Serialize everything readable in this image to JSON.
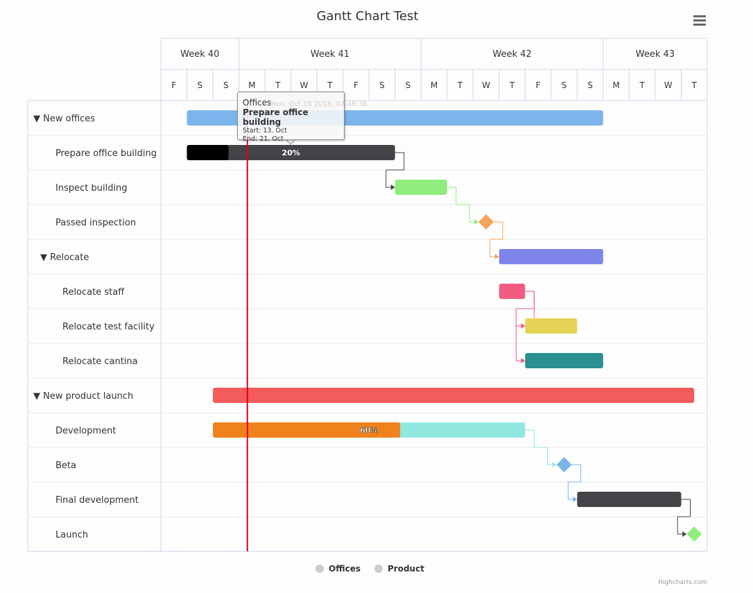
{
  "title": "Gantt Chart Test",
  "menu_icon": "hamburger-menu-icon",
  "chart_data": {
    "type": "gantt",
    "x_range": [
      "2018-10-12",
      "2018-11-02"
    ],
    "weeks": [
      {
        "label": "Week 40",
        "days": 3
      },
      {
        "label": "Week 41",
        "days": 7
      },
      {
        "label": "Week 42",
        "days": 7
      },
      {
        "label": "Week 43",
        "days": 4
      }
    ],
    "day_labels": [
      "F",
      "S",
      "S",
      "M",
      "T",
      "W",
      "T",
      "F",
      "S",
      "S",
      "M",
      "T",
      "W",
      "T",
      "F",
      "S",
      "S",
      "M",
      "T",
      "W",
      "T"
    ],
    "current_date": "2018-10-15T07:48:38",
    "current_date_label": "Mon, Oct 15 2018, 07:48:38",
    "current_date_color": "#e0001a",
    "tasks": [
      {
        "name": "New offices",
        "level": 0,
        "collapsible": true,
        "series": "Offices",
        "start": "2018-10-13",
        "end": "2018-10-29",
        "color": "#7cb5ec"
      },
      {
        "name": "Prepare office building",
        "level": 1,
        "series": "Offices",
        "start": "2018-10-13",
        "end": "2018-10-21",
        "color": "#434348",
        "completed": 0.2,
        "completed_label": "20%",
        "completed_color": "#000000"
      },
      {
        "name": "Inspect building",
        "level": 1,
        "series": "Offices",
        "start": "2018-10-21",
        "end": "2018-10-23",
        "color": "#90ed7d",
        "dependency": 1
      },
      {
        "name": "Passed inspection",
        "level": 1,
        "series": "Offices",
        "milestone": true,
        "start": "2018-10-24T12:00",
        "color": "#f7a35c",
        "dependency": 2
      },
      {
        "name": "Relocate",
        "level": 1,
        "collapsible": true,
        "series": "Offices",
        "start": "2018-10-25",
        "end": "2018-10-29",
        "color": "#8085e9",
        "dependency": 3
      },
      {
        "name": "Relocate staff",
        "level": 2,
        "series": "Offices",
        "start": "2018-10-25",
        "end": "2018-10-26",
        "color": "#f15c80"
      },
      {
        "name": "Relocate test facility",
        "level": 2,
        "series": "Offices",
        "start": "2018-10-26",
        "end": "2018-10-28",
        "color": "#e4d354",
        "dependency": 5
      },
      {
        "name": "Relocate cantina",
        "level": 2,
        "series": "Offices",
        "start": "2018-10-26",
        "end": "2018-10-29",
        "color": "#2b908f",
        "dependency": 5
      },
      {
        "name": "New product launch",
        "level": 0,
        "collapsible": true,
        "series": "Product",
        "start": "2018-10-14",
        "end": "2018-11-01T12:00",
        "color": "#f45b5b"
      },
      {
        "name": "Development",
        "level": 1,
        "series": "Product",
        "start": "2018-10-14",
        "end": "2018-10-26",
        "color": "#91e8e1",
        "completed": 0.6,
        "completed_label": "60%",
        "completed_color": "#f0821e"
      },
      {
        "name": "Beta",
        "level": 1,
        "series": "Product",
        "milestone": true,
        "start": "2018-10-27T12:00",
        "color": "#7cb5ec",
        "dependency": 9
      },
      {
        "name": "Final development",
        "level": 1,
        "series": "Product",
        "start": "2018-10-28",
        "end": "2018-11-01",
        "color": "#434348",
        "dependency": 10
      },
      {
        "name": "Launch",
        "level": 1,
        "series": "Product",
        "milestone": true,
        "start": "2018-11-01T12:00",
        "color": "#90ed7d",
        "dependency": 11
      }
    ],
    "legend": [
      {
        "name": "Offices",
        "color": "#cccccc"
      },
      {
        "name": "Product",
        "color": "#cccccc"
      }
    ]
  },
  "tooltip": {
    "series": "Offices",
    "name": "Prepare office building",
    "start": "Start: 13. Oct",
    "end": "End: 21. Oct"
  },
  "credits": "Highcharts.com"
}
